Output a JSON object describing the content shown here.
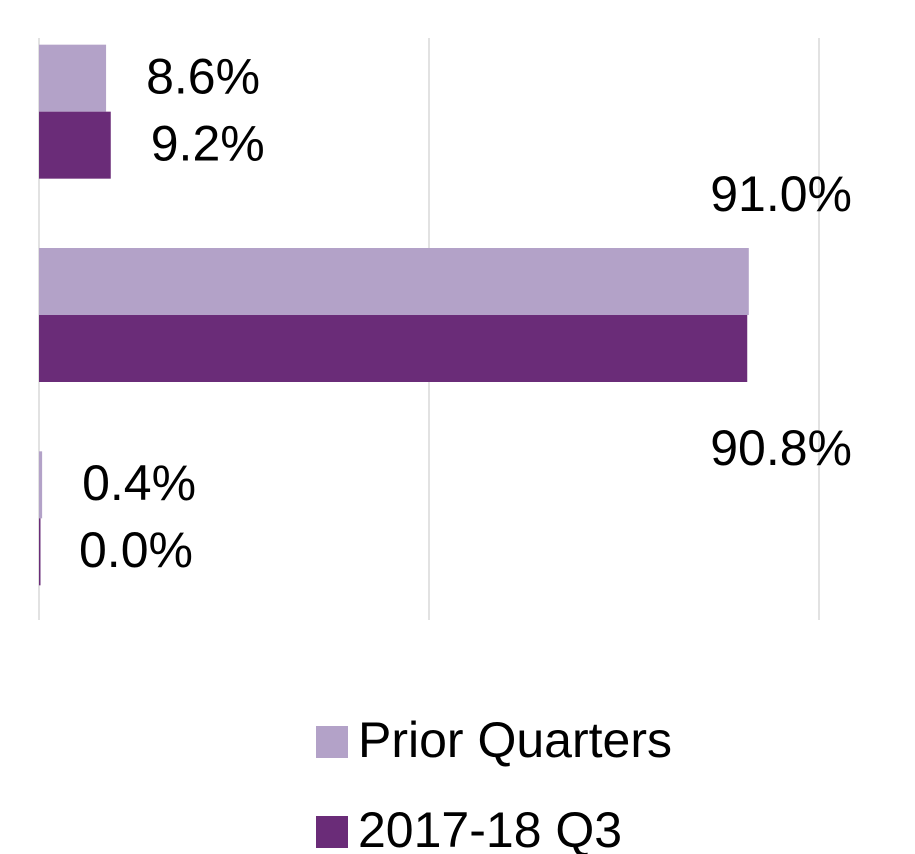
{
  "chart_data": {
    "type": "hbar",
    "categories": [
      null,
      null,
      null
    ],
    "series": [
      {
        "name": "Prior Quarters",
        "color": "#b3a2c8",
        "values": [
          8.6,
          91.0,
          0.4
        ],
        "value_labels": [
          "8.6%",
          "91.0%",
          "0.4%"
        ]
      },
      {
        "name": "2017-18 Q3",
        "color": "#6a2c78",
        "values": [
          9.2,
          90.8,
          0.0
        ],
        "value_labels": [
          "9.2%",
          "90.8%",
          "0.0%"
        ]
      }
    ],
    "xlim": [
      0,
      100
    ],
    "xticks": [
      0,
      50,
      100
    ],
    "grid": true
  }
}
